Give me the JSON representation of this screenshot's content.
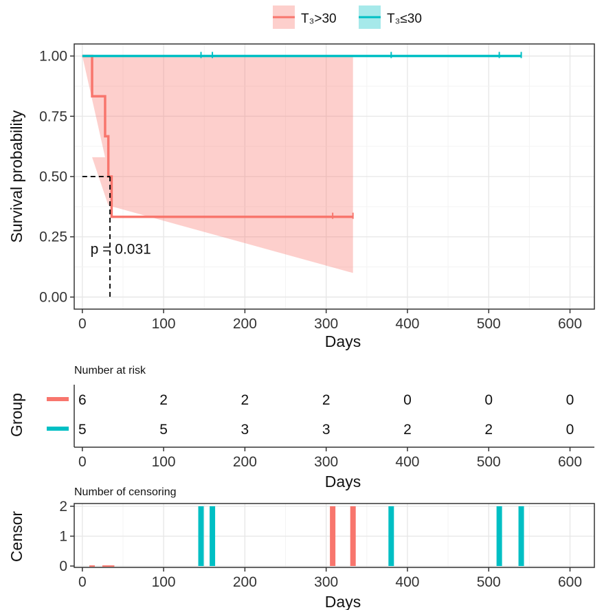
{
  "colors": {
    "high": "#f8766d",
    "low": "#00bfc4",
    "grid": "#ebebeb",
    "panel_border": "#333333"
  },
  "legend": {
    "position": "top",
    "items": [
      {
        "label": "T₃>30",
        "color": "#f8766d"
      },
      {
        "label": "T₃≤30",
        "color": "#00bfc4"
      }
    ]
  },
  "chart_data": [
    {
      "type": "line",
      "subtype": "kaplan-meier",
      "xlabel": "Days",
      "ylabel": "Survival probability",
      "xlim": [
        -10,
        630
      ],
      "ylim": [
        -0.05,
        1.05
      ],
      "xticks": [
        0,
        100,
        200,
        300,
        400,
        500,
        600
      ],
      "yticks": [
        0.0,
        0.25,
        0.5,
        0.75,
        1.0
      ],
      "ytick_labels": [
        "0.00",
        "0.25",
        "0.50",
        "0.75",
        "1.00"
      ],
      "grid": true,
      "annotation": "p = 0.031",
      "annotation_at": {
        "x": 10,
        "y": 0.2
      },
      "median_line": {
        "x": 34,
        "y": 0.5
      },
      "series": [
        {
          "name": "T₃>30",
          "color": "#f8766d",
          "steps": [
            [
              0,
              1.0
            ],
            [
              12,
              0.833
            ],
            [
              28,
              0.667
            ],
            [
              32,
              0.5
            ],
            [
              36,
              0.333
            ],
            [
              333,
              0.333
            ]
          ],
          "ci_steps": [
            [
              0,
              1.0,
              1.0
            ],
            [
              12,
              0.58,
              1.0
            ],
            [
              28,
              0.38,
              1.0
            ],
            [
              32,
              0.38,
              1.0
            ],
            [
              36,
              0.1,
              1.0
            ],
            [
              333,
              0.1,
              1.0
            ]
          ],
          "censor_x": [
            308,
            333
          ]
        },
        {
          "name": "T₃≤30",
          "color": "#00bfc4",
          "steps": [
            [
              0,
              1.0
            ],
            [
              540,
              1.0
            ]
          ],
          "ci_steps": [],
          "censor_x": [
            146,
            160,
            380,
            513,
            540
          ]
        }
      ]
    },
    {
      "type": "table",
      "title": "Number at risk",
      "ylabel": "Group",
      "xlabel": "Days",
      "xlim": [
        -10,
        630
      ],
      "xticks": [
        0,
        100,
        200,
        300,
        400,
        500,
        600
      ],
      "rows": [
        {
          "color": "#f8766d",
          "values": [
            "6",
            "2",
            "2",
            "2",
            "0",
            "0",
            "0"
          ]
        },
        {
          "color": "#00bfc4",
          "values": [
            "5",
            "5",
            "3",
            "3",
            "2",
            "2",
            "0"
          ]
        }
      ]
    },
    {
      "type": "bar",
      "title": "Number of censoring",
      "ylabel": "Censor",
      "xlabel": "Days",
      "xlim": [
        -10,
        630
      ],
      "ylim": [
        0,
        2
      ],
      "yticks": [
        0,
        1,
        2
      ],
      "xticks": [
        0,
        100,
        200,
        300,
        400,
        500,
        600
      ],
      "grid": true,
      "events": [
        {
          "x": 146,
          "value": 2,
          "color": "#00bfc4"
        },
        {
          "x": 160,
          "value": 2,
          "color": "#00bfc4"
        },
        {
          "x": 308,
          "value": 2,
          "color": "#f8766d"
        },
        {
          "x": 333,
          "value": 2,
          "color": "#f8766d"
        },
        {
          "x": 380,
          "value": 2,
          "color": "#00bfc4"
        },
        {
          "x": 513,
          "value": 2,
          "color": "#00bfc4"
        },
        {
          "x": 540,
          "value": 2,
          "color": "#00bfc4"
        }
      ],
      "zero_marks": [
        {
          "x": 12,
          "color": "#f8766d"
        },
        {
          "x": 28,
          "color": "#f8766d"
        },
        {
          "x": 32,
          "color": "#f8766d"
        },
        {
          "x": 36,
          "color": "#f8766d"
        }
      ]
    }
  ]
}
